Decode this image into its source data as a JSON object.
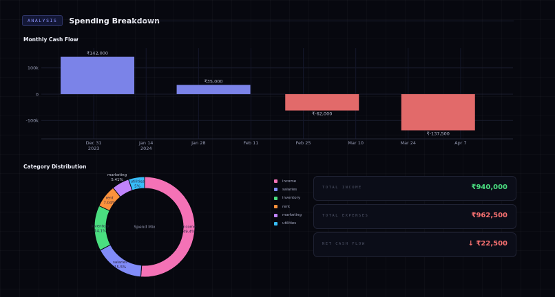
{
  "header": {
    "badge": "ANALYSIS",
    "title": "Spending Breakdown"
  },
  "sections": {
    "cashflow_title": "Monthly Cash Flow",
    "category_title": "Category Distribution"
  },
  "colors": {
    "income": "#f472b6",
    "salaries": "#818cf8",
    "inventory": "#4ade80",
    "rent": "#fb923c",
    "marketing": "#c084fc",
    "utilities": "#38bdf8",
    "positive_bar": "#7b83e8",
    "negative_bar": "#e26a6a"
  },
  "chart_data": [
    {
      "type": "bar",
      "title": "Monthly Cash Flow",
      "x": [
        "2024-01-01",
        "2024-02-01",
        "2024-03-01",
        "2024-04-01"
      ],
      "values": [
        142000,
        35000,
        -62000,
        -137500
      ],
      "data_labels": [
        "₹142,000",
        "₹35,000",
        "₹-62,000",
        "₹-137,500"
      ],
      "y_ticks": [
        "100k",
        "0",
        "-100k"
      ],
      "y_tick_values": [
        100000,
        0,
        -100000
      ],
      "ylim": [
        -170000,
        175000
      ],
      "x_ticks": [
        {
          "date": "2023-12-31",
          "label": "Dec 31",
          "sub": "2023"
        },
        {
          "date": "2024-01-14",
          "label": "Jan 14",
          "sub": "2024"
        },
        {
          "date": "2024-01-28",
          "label": "Jan 28",
          "sub": ""
        },
        {
          "date": "2024-02-11",
          "label": "Feb 11",
          "sub": ""
        },
        {
          "date": "2024-02-25",
          "label": "Feb 25",
          "sub": ""
        },
        {
          "date": "2024-03-10",
          "label": "Mar 10",
          "sub": ""
        },
        {
          "date": "2024-03-24",
          "label": "Mar 24",
          "sub": ""
        },
        {
          "date": "2024-04-07",
          "label": "Apr 7",
          "sub": ""
        }
      ],
      "grid": true
    },
    {
      "type": "pie",
      "title": "Category Distribution",
      "center_label": "Spend Mix",
      "categories": [
        "income",
        "salaries",
        "inventory",
        "rent",
        "marketing",
        "utilities"
      ],
      "values": [
        49.4,
        15.5,
        14.1,
        7.04,
        5.41,
        5.0
      ],
      "slice_labels": [
        {
          "name": "income",
          "pct": "49.4%"
        },
        {
          "name": "salaries",
          "pct": "15.5%"
        },
        {
          "name": "inventory",
          "pct": "14.1%"
        },
        {
          "name": "rent",
          "pct": "7.04%"
        },
        {
          "name": "marketing",
          "pct": "5.41%"
        },
        {
          "name": "utilities",
          "pct": "5%"
        }
      ],
      "legend": "right"
    }
  ],
  "summary": [
    {
      "label": "TOTAL INCOME",
      "value": "₹940,000",
      "color": "#4ade80"
    },
    {
      "label": "TOTAL EXPENSES",
      "value": "₹962,500",
      "color": "#f87171"
    },
    {
      "label": "NET CASH FLOW",
      "value": "↓ ₹22,500",
      "color": "#f87171"
    }
  ]
}
